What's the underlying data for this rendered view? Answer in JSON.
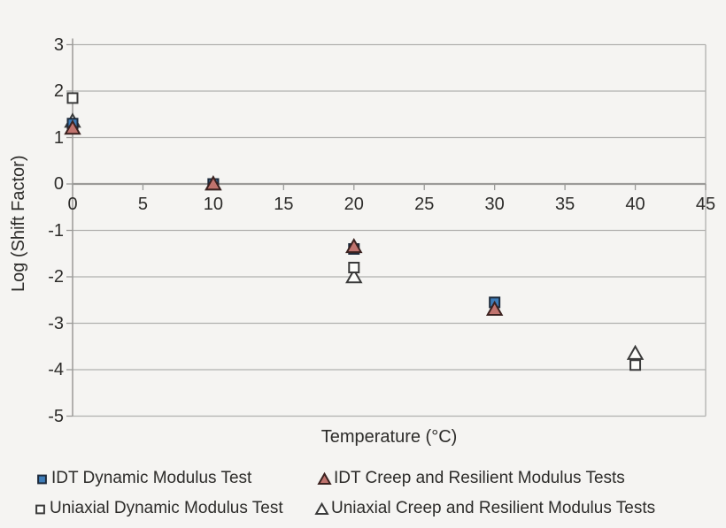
{
  "chart_data": {
    "type": "scatter",
    "xlabel": "Temperature (°C)",
    "ylabel": "Log (Shift Factor)",
    "xlim": [
      0,
      45
    ],
    "ylim": [
      -5,
      3
    ],
    "xticks": [
      0,
      5,
      10,
      15,
      20,
      25,
      30,
      35,
      40,
      45
    ],
    "yticks": [
      3,
      2,
      1,
      0,
      -1,
      -2,
      -3,
      -4,
      -5
    ],
    "grid": "horizontal",
    "legend_position": "bottom",
    "draw_order": [
      3,
      2,
      0,
      1
    ],
    "series": [
      {
        "name": "IDT Dynamic Modulus Test",
        "marker": "square",
        "fill": "#3E7CB8",
        "stroke": "#1E2B3C",
        "points": [
          [
            0,
            1.3
          ],
          [
            10,
            0
          ],
          [
            20,
            -1.4
          ],
          [
            30,
            -2.55
          ]
        ]
      },
      {
        "name": "IDT Creep and Resilient Modulus Tests",
        "marker": "triangle",
        "fill": "#C0736E",
        "stroke": "#3B2220",
        "points": [
          [
            0,
            1.2
          ],
          [
            10,
            0
          ],
          [
            20,
            -1.35
          ],
          [
            30,
            -2.7
          ]
        ]
      },
      {
        "name": "Uniaxial Dynamic Modulus Test",
        "marker": "square",
        "fill": "#FCFCFA",
        "stroke": "#3A3A3A",
        "points": [
          [
            0,
            1.85
          ],
          [
            10,
            0
          ],
          [
            20,
            -1.8
          ],
          [
            40,
            -3.9
          ]
        ]
      },
      {
        "name": "Uniaxial Creep and Resilient Modulus Tests",
        "marker": "triangle",
        "fill": "#FCFCFA",
        "stroke": "#3A3A3A",
        "points": [
          [
            0,
            1.35
          ],
          [
            10,
            0
          ],
          [
            20,
            -2.0
          ],
          [
            40,
            -3.65
          ]
        ]
      }
    ],
    "colors": {
      "background": "#F5F4F2",
      "gridline": "#B1B0AE",
      "axis": "#9B9A98",
      "text": "#2D2C2A"
    }
  }
}
